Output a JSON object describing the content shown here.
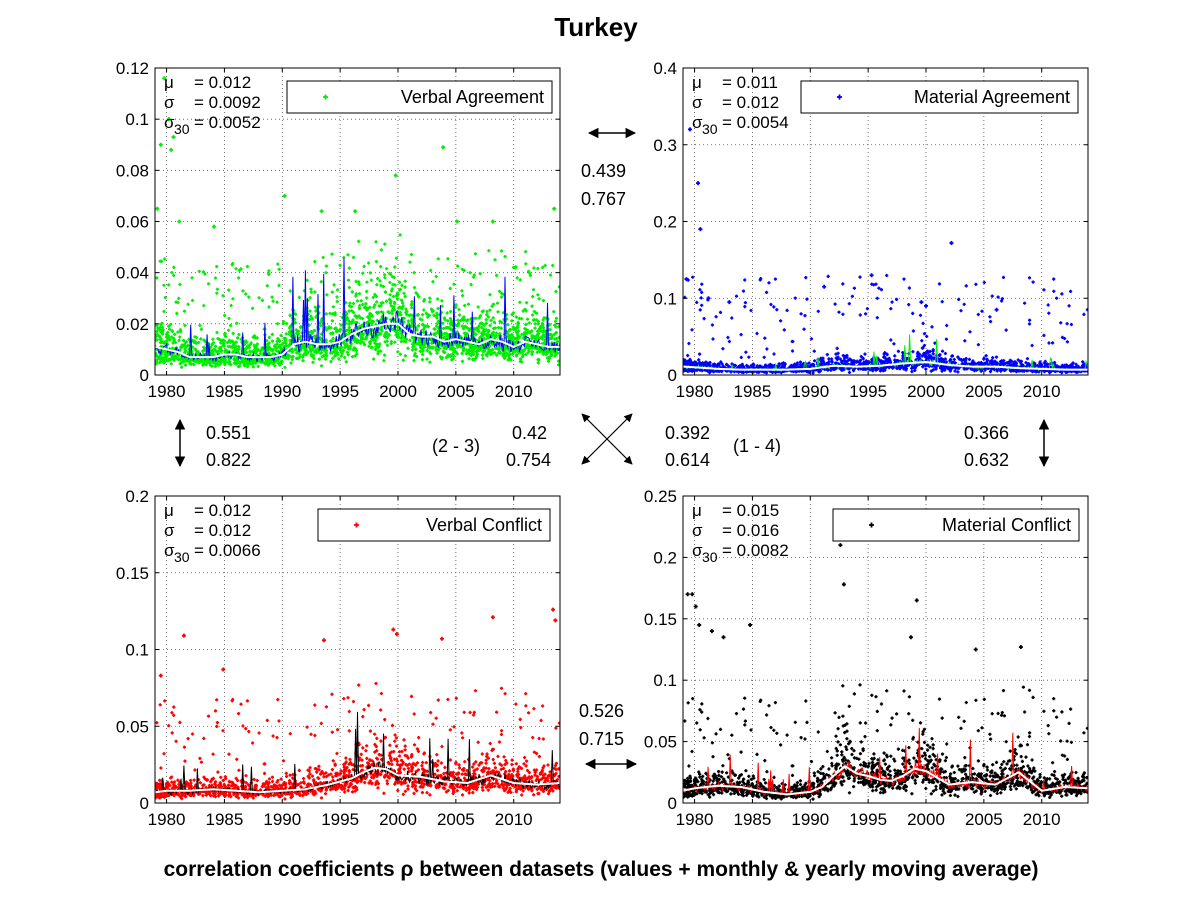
{
  "figure": {
    "title": "Turkey",
    "caption": "correlation coefficients ρ between datasets (values + monthly & yearly moving average)"
  },
  "colors": {
    "verbal_agreement": "#00ee00",
    "material_agreement": "#0000ff",
    "verbal_conflict": "#ff0000",
    "material_conflict": "#000000",
    "yearly_average": "#ffffff",
    "grid": "#444444"
  },
  "chart_data": [
    {
      "type": "scatter",
      "legend": "Verbal Agreement",
      "legend_location": "top-right",
      "point_color": "#00ee00",
      "monthly_average_color": "#0000ff",
      "yearly_average_color": "#ffffff",
      "xlim": [
        1979,
        2014
      ],
      "xticks": [
        1980,
        1985,
        1990,
        1995,
        2000,
        2005,
        2010
      ],
      "ylim": [
        0,
        0.12
      ],
      "yticks": [
        0,
        0.02,
        0.04,
        0.06,
        0.08,
        0.1,
        0.12
      ],
      "ytick_labels": [
        "0",
        "0.02",
        "0.04",
        "0.06",
        "0.08",
        "0.1",
        "0.12"
      ],
      "grid": true,
      "stats": {
        "mu": "= 0.012",
        "sigma": "= 0.0092",
        "sigma30": "= 0.0052"
      },
      "yearly_average": {
        "x": [
          1979,
          1980,
          1981,
          1982,
          1983,
          1984,
          1985,
          1986,
          1987,
          1988,
          1989,
          1990,
          1991,
          1992,
          1993,
          1994,
          1995,
          1996,
          1997,
          1998,
          1999,
          2000,
          2001,
          2002,
          2003,
          2004,
          2005,
          2006,
          2007,
          2008,
          2009,
          2010,
          2011,
          2012,
          2013,
          2014
        ],
        "y": [
          0.011,
          0.01,
          0.009,
          0.007,
          0.007,
          0.007,
          0.008,
          0.008,
          0.007,
          0.007,
          0.007,
          0.008,
          0.012,
          0.013,
          0.012,
          0.012,
          0.013,
          0.016,
          0.018,
          0.019,
          0.02,
          0.02,
          0.016,
          0.015,
          0.015,
          0.013,
          0.014,
          0.013,
          0.012,
          0.014,
          0.013,
          0.011,
          0.013,
          0.012,
          0.011,
          0.011
        ]
      },
      "outliers": {
        "x": [
          1979.2,
          1979.5,
          1979.8,
          1980.2,
          1980.4,
          1980.6,
          1981.1,
          1984.1,
          1990.2,
          1993.4,
          1996.3,
          1999.8,
          2003.9,
          2005.1,
          2008.2,
          2013.5
        ],
        "y": [
          0.065,
          0.09,
          0.116,
          0.1,
          0.088,
          0.093,
          0.06,
          0.058,
          0.07,
          0.064,
          0.064,
          0.078,
          0.089,
          0.06,
          0.06,
          0.065
        ]
      }
    },
    {
      "type": "scatter",
      "legend": "Material Agreement",
      "legend_location": "top-right",
      "point_color": "#0000ff",
      "monthly_average_color": "#00ee00",
      "yearly_average_color": "#ffffff",
      "xlim": [
        1979,
        2014
      ],
      "xticks": [
        1980,
        1985,
        1990,
        1995,
        2000,
        2005,
        2010
      ],
      "ylim": [
        0,
        0.4
      ],
      "yticks": [
        0,
        0.1,
        0.2,
        0.3,
        0.4
      ],
      "ytick_labels": [
        "0",
        "0.1",
        "0.2",
        "0.3",
        "0.4"
      ],
      "grid": true,
      "stats": {
        "mu": "= 0.011",
        "sigma": "= 0.012",
        "sigma30": "= 0.0054"
      },
      "yearly_average": {
        "x": [
          1979,
          1980,
          1982,
          1984,
          1986,
          1988,
          1990,
          1992,
          1994,
          1996,
          1998,
          2000,
          2002,
          2004,
          2006,
          2008,
          2010,
          2012,
          2014
        ],
        "y": [
          0.011,
          0.01,
          0.008,
          0.007,
          0.007,
          0.007,
          0.008,
          0.012,
          0.011,
          0.012,
          0.015,
          0.017,
          0.013,
          0.011,
          0.011,
          0.009,
          0.008,
          0.007,
          0.007
        ]
      },
      "outliers": {
        "x": [
          1979.3,
          1979.6,
          1980.3,
          1980.5,
          1981.2,
          1983.0,
          1991.2,
          1995.3,
          1999.6,
          2000.0,
          2002.2,
          2006.1
        ],
        "y": [
          0.125,
          0.32,
          0.25,
          0.19,
          0.1,
          0.095,
          0.115,
          0.13,
          0.095,
          0.09,
          0.172,
          0.085
        ]
      }
    },
    {
      "type": "scatter",
      "legend": "Verbal Conflict",
      "legend_location": "top-right",
      "point_color": "#ff0000",
      "monthly_average_color": "#000000",
      "yearly_average_color": "#ffffff",
      "xlim": [
        1979,
        2014
      ],
      "xticks": [
        1980,
        1985,
        1990,
        1995,
        2000,
        2005,
        2010
      ],
      "ylim": [
        0,
        0.2
      ],
      "yticks": [
        0,
        0.05,
        0.1,
        0.15,
        0.2
      ],
      "ytick_labels": [
        "0",
        "0.05",
        "0.1",
        "0.15",
        "0.2"
      ],
      "grid": true,
      "stats": {
        "mu": "= 0.012",
        "sigma": "= 0.012",
        "sigma30": "= 0.0066"
      },
      "yearly_average": {
        "x": [
          1979,
          1980,
          1982,
          1984,
          1986,
          1988,
          1990,
          1992,
          1994,
          1996,
          1997,
          1998,
          1999,
          2000,
          2002,
          2004,
          2006,
          2008,
          2010,
          2012,
          2014
        ],
        "y": [
          0.007,
          0.008,
          0.008,
          0.009,
          0.008,
          0.007,
          0.008,
          0.009,
          0.012,
          0.016,
          0.02,
          0.023,
          0.022,
          0.018,
          0.017,
          0.014,
          0.013,
          0.018,
          0.013,
          0.012,
          0.013
        ]
      },
      "outliers": {
        "x": [
          1979.5,
          1981.5,
          1984.9,
          1993.6,
          1999.6,
          1999.9,
          2003.8,
          2008.2,
          2013.4,
          2013.6
        ],
        "y": [
          0.083,
          0.109,
          0.087,
          0.106,
          0.113,
          0.11,
          0.107,
          0.121,
          0.126,
          0.119
        ]
      }
    },
    {
      "type": "scatter",
      "legend": "Material Conflict",
      "legend_location": "top-right",
      "point_color": "#000000",
      "monthly_average_color": "#ff0000",
      "yearly_average_color": "#ffffff",
      "xlim": [
        1979,
        2014
      ],
      "xticks": [
        1980,
        1985,
        1990,
        1995,
        2000,
        2005,
        2010
      ],
      "ylim": [
        0,
        0.25
      ],
      "yticks": [
        0,
        0.05,
        0.1,
        0.15,
        0.2,
        0.25
      ],
      "ytick_labels": [
        "0",
        "0.05",
        "0.1",
        "0.15",
        "0.2",
        "0.25"
      ],
      "grid": true,
      "stats": {
        "mu": "= 0.015",
        "sigma": "= 0.016",
        "sigma30": "= 0.0082"
      },
      "yearly_average": {
        "x": [
          1979,
          1980,
          1982,
          1984,
          1986,
          1988,
          1990,
          1991,
          1992,
          1993,
          1994,
          1995,
          1996,
          1997,
          1998,
          1999,
          2000,
          2002,
          2004,
          2006,
          2008,
          2010,
          2012,
          2014
        ],
        "y": [
          0.01,
          0.012,
          0.014,
          0.013,
          0.009,
          0.007,
          0.009,
          0.013,
          0.022,
          0.03,
          0.024,
          0.022,
          0.019,
          0.018,
          0.022,
          0.028,
          0.026,
          0.015,
          0.017,
          0.015,
          0.025,
          0.01,
          0.013,
          0.012
        ]
      },
      "outliers": {
        "x": [
          1979.4,
          1979.8,
          1980.1,
          1980.4,
          1981.5,
          1982.5,
          1984.8,
          1992.6,
          1992.9,
          1998.7,
          1999.2,
          2004.3,
          2008.2
        ],
        "y": [
          0.17,
          0.17,
          0.16,
          0.145,
          0.14,
          0.135,
          0.145,
          0.21,
          0.178,
          0.135,
          0.165,
          0.125,
          0.127
        ]
      }
    }
  ],
  "correlations": {
    "top": {
      "values": "0.439",
      "averages": "0.767"
    },
    "left": {
      "values": "0.551",
      "averages": "0.822"
    },
    "right": {
      "values": "0.366",
      "averages": "0.632"
    },
    "diag_2_3": {
      "label": "(2 - 3)",
      "values": "0.42",
      "averages": "0.754"
    },
    "diag_1_4": {
      "label": "(1 - 4)",
      "values": "0.392",
      "averages": "0.614"
    },
    "bottom": {
      "values": "0.526",
      "averages": "0.715"
    }
  }
}
